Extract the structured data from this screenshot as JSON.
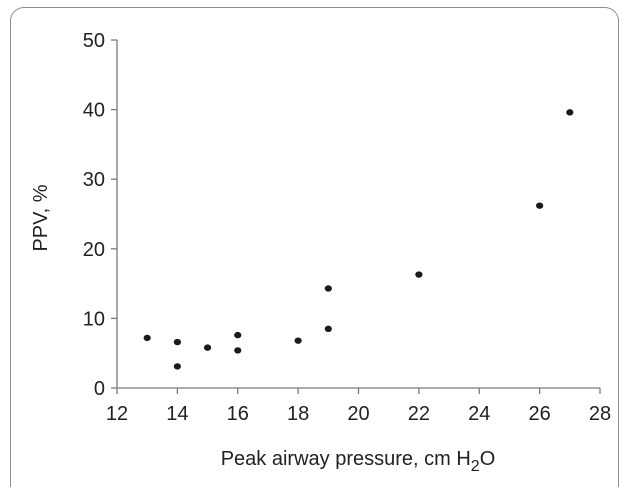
{
  "chart_data": {
    "type": "scatter",
    "xlabel": "Peak airway pressure, cm H",
    "xlabel_sub": "2",
    "xlabel_tail": "O",
    "ylabel": "PPV, %",
    "xlim": [
      12,
      28
    ],
    "ylim": [
      0,
      50
    ],
    "xticks": [
      "12",
      "14",
      "16",
      "18",
      "20",
      "22",
      "24",
      "26",
      "28"
    ],
    "yticks": [
      "0",
      "10",
      "20",
      "30",
      "40",
      "50"
    ],
    "grid": false,
    "marker_color": "#1a1a1a",
    "points": [
      {
        "x": 13,
        "y": 7.2
      },
      {
        "x": 14,
        "y": 6.6
      },
      {
        "x": 14,
        "y": 3.1
      },
      {
        "x": 15,
        "y": 5.8
      },
      {
        "x": 16,
        "y": 7.6
      },
      {
        "x": 16,
        "y": 5.4
      },
      {
        "x": 18,
        "y": 6.8
      },
      {
        "x": 19,
        "y": 14.3
      },
      {
        "x": 19,
        "y": 8.5
      },
      {
        "x": 22,
        "y": 16.3
      },
      {
        "x": 26,
        "y": 26.2
      },
      {
        "x": 27,
        "y": 39.6
      }
    ]
  }
}
